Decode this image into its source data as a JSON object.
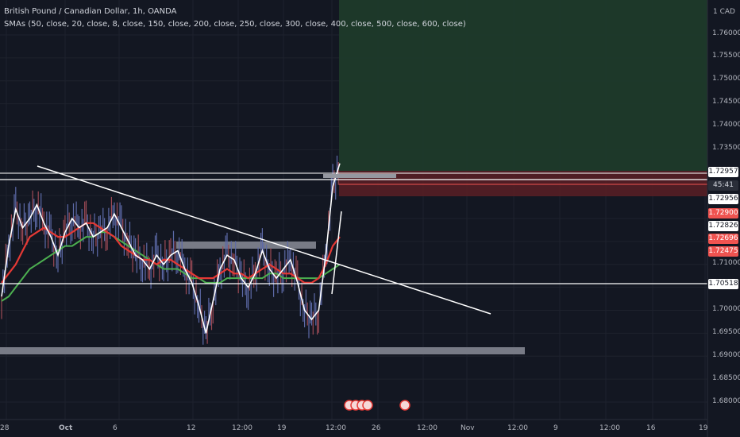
{
  "header": {
    "symbol": "British Pound / Canadian Dollar, 1h, OANDA",
    "indicators": "SMAs (50, close, 20, close, 8, close, 150, close, 200, close, 250, close, 300, close, 400, close, 500, close, 600, close)"
  },
  "currency": "1 CAD",
  "colors": {
    "background": "#131722",
    "trendline": "#ffffff",
    "zone_gray": "#787b86",
    "target_zone": "#1e3a2a",
    "stop_zone": "#5a1e24",
    "sma_red": "#e53935",
    "sma_green": "#4caf50",
    "sma_white": "#ffffff",
    "candles": "#5d6aa8",
    "tag_red": "#ef5350",
    "tag_white": "#ffffff"
  },
  "y_axis_ticks": [
    "1.76000",
    "1.75500",
    "1.75000",
    "1.74500",
    "1.74000",
    "1.73500",
    "1.71000",
    "1.70000",
    "1.69500",
    "1.69000",
    "1.68500",
    "1.68000"
  ],
  "x_axis_ticks": [
    "28",
    "Oct",
    "6",
    "12",
    "12:00",
    "19",
    "12:00",
    "26",
    "12:00",
    "Nov",
    "12:00",
    "9",
    "12:00",
    "16",
    "19"
  ],
  "price_tags": [
    {
      "label": "1.72957",
      "style": "white"
    },
    {
      "label": "45:41",
      "style": "dark"
    },
    {
      "label": "1.72956",
      "style": "white"
    },
    {
      "label": "1.72900",
      "style": "red"
    },
    {
      "label": "1.72826",
      "style": "white"
    },
    {
      "label": "1.72696",
      "style": "red"
    },
    {
      "label": "1.72475",
      "style": "red"
    },
    {
      "label": "1.70518",
      "style": "white"
    }
  ],
  "chart_data": {
    "type": "line",
    "title": "British Pound / Canadian Dollar, 1h, OANDA",
    "ylim": [
      1.678,
      1.767
    ],
    "horizontal_levels": [
      1.72957,
      1.72826,
      1.72475,
      1.70518
    ],
    "zones": [
      {
        "name": "resistance",
        "price": [
          1.7143,
          1.7159
        ]
      },
      {
        "name": "support",
        "price": [
          1.6906,
          1.6918
        ]
      },
      {
        "name": "target",
        "price": [
          1.7296,
          1.767
        ]
      },
      {
        "name": "stop",
        "price": [
          1.7243,
          1.7296
        ]
      }
    ],
    "trendline": {
      "from": [
        "Sep 30",
        1.7313
      ],
      "to": [
        "Oct 29",
        1.7005
      ]
    },
    "series": [
      {
        "values": [
          1.703,
          1.714,
          1.722,
          1.718,
          1.72,
          1.723,
          1.719,
          1.716,
          1.712,
          1.717,
          1.72,
          1.718,
          1.719,
          1.716,
          1.717,
          1.718,
          1.721,
          1.718,
          1.715,
          1.712,
          1.711,
          1.709,
          1.712,
          1.71,
          1.712,
          1.713,
          1.709,
          1.706,
          1.701,
          1.695,
          1.702,
          1.709,
          1.712,
          1.711,
          1.707,
          1.705,
          1.708,
          1.713,
          1.709,
          1.707,
          1.709,
          1.711,
          1.706,
          1.7,
          1.698,
          1.7,
          1.712,
          1.727,
          1.732
        ]
      },
      {
        "values": [
          1.706,
          1.708,
          1.71,
          1.713,
          1.716,
          1.717,
          1.718,
          1.717,
          1.716,
          1.716,
          1.717,
          1.718,
          1.719,
          1.719,
          1.718,
          1.717,
          1.716,
          1.714,
          1.713,
          1.712,
          1.711,
          1.711,
          1.71,
          1.711,
          1.711,
          1.71,
          1.709,
          1.708,
          1.707,
          1.707,
          1.707,
          1.708,
          1.709,
          1.708,
          1.708,
          1.707,
          1.708,
          1.709,
          1.71,
          1.709,
          1.708,
          1.708,
          1.707,
          1.706,
          1.706,
          1.707,
          1.71,
          1.714,
          1.716
        ]
      },
      {
        "values": [
          1.702,
          1.703,
          1.705,
          1.707,
          1.709,
          1.71,
          1.711,
          1.712,
          1.713,
          1.714,
          1.714,
          1.715,
          1.716,
          1.716,
          1.717,
          1.717,
          1.716,
          1.715,
          1.714,
          1.713,
          1.712,
          1.711,
          1.71,
          1.709,
          1.709,
          1.709,
          1.708,
          1.707,
          1.707,
          1.706,
          1.706,
          1.706,
          1.707,
          1.707,
          1.707,
          1.707,
          1.707,
          1.707,
          1.708,
          1.708,
          1.707,
          1.707,
          1.707,
          1.707,
          1.707,
          1.707,
          1.708,
          1.709,
          1.71
        ]
      }
    ]
  }
}
